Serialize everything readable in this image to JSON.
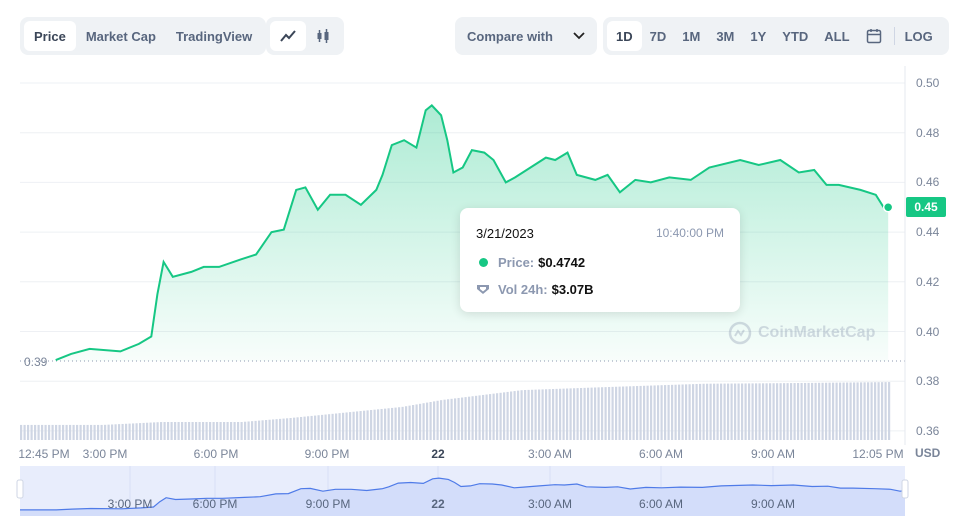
{
  "tabs": {
    "items": [
      "Price",
      "Market Cap",
      "TradingView"
    ],
    "active": "Price"
  },
  "chart_type_toggle": {
    "icons": [
      "line-chart-icon",
      "candlestick-icon"
    ],
    "active": "line-chart-icon"
  },
  "compare": {
    "label": "Compare with"
  },
  "ranges": {
    "items": [
      "1D",
      "7D",
      "1M",
      "3M",
      "1Y",
      "YTD",
      "ALL"
    ],
    "active": "1D",
    "log_label": "LOG"
  },
  "tooltip": {
    "date": "3/21/2023",
    "time": "10:40:00 PM",
    "price_label": "Price:",
    "price_value": "$0.4742",
    "vol_label": "Vol 24h:",
    "vol_value": "$3.07B"
  },
  "watermark": "CoinMarketCap",
  "open_price_label": "0.39",
  "current_price_badge": "0.45",
  "currency": "USD",
  "colors": {
    "line": "#16c784",
    "volume": "#cfd6e4",
    "navigator_line": "#4f7be8",
    "navigator_bg": "#e8edfc"
  },
  "chart_data": {
    "type": "area",
    "y_ticks": [
      "0.50",
      "0.48",
      "0.46",
      "0.44",
      "0.42",
      "0.40",
      "0.38",
      "0.36"
    ],
    "ylim": [
      0.36,
      0.5
    ],
    "x_ticks": [
      "12:45 PM",
      "3:00 PM",
      "6:00 PM",
      "9:00 PM",
      "22",
      "3:00 AM",
      "6:00 AM",
      "9:00 AM",
      "12:05 PM"
    ],
    "navigator_ticks": [
      "3:00 PM",
      "6:00 PM",
      "9:00 PM",
      "22",
      "3:00 AM",
      "6:00 AM",
      "9:00 AM"
    ],
    "price_series": [
      [
        "03-21 13:40",
        0.3885
      ],
      [
        "03-21 14:05",
        0.391
      ],
      [
        "03-21 14:35",
        0.393
      ],
      [
        "03-21 15:25",
        0.392
      ],
      [
        "03-21 15:55",
        0.395
      ],
      [
        "03-21 16:15",
        0.398
      ],
      [
        "03-21 16:25",
        0.415
      ],
      [
        "03-21 16:35",
        0.428
      ],
      [
        "03-21 16:50",
        0.422
      ],
      [
        "03-21 17:20",
        0.424
      ],
      [
        "03-21 17:40",
        0.426
      ],
      [
        "03-21 18:05",
        0.426
      ],
      [
        "03-21 18:40",
        0.429
      ],
      [
        "03-21 19:05",
        0.431
      ],
      [
        "03-21 19:30",
        0.44
      ],
      [
        "03-21 19:50",
        0.441
      ],
      [
        "03-21 20:10",
        0.457
      ],
      [
        "03-21 20:25",
        0.458
      ],
      [
        "03-21 20:45",
        0.449
      ],
      [
        "03-21 21:05",
        0.455
      ],
      [
        "03-21 21:30",
        0.455
      ],
      [
        "03-21 21:55",
        0.451
      ],
      [
        "03-21 22:20",
        0.457
      ],
      [
        "03-21 22:30",
        0.463
      ],
      [
        "03-21 22:45",
        0.475
      ],
      [
        "03-21 23:05",
        0.477
      ],
      [
        "03-21 23:25",
        0.474
      ],
      [
        "03-21 23:40",
        0.489
      ],
      [
        "03-21 23:50",
        0.491
      ],
      [
        "03-22 00:05",
        0.487
      ],
      [
        "03-22 00:15",
        0.477
      ],
      [
        "03-22 00:25",
        0.464
      ],
      [
        "03-22 00:40",
        0.466
      ],
      [
        "03-22 00:55",
        0.473
      ],
      [
        "03-22 01:15",
        0.472
      ],
      [
        "03-22 01:30",
        0.469
      ],
      [
        "03-22 01:50",
        0.46
      ],
      [
        "03-22 02:05",
        0.462
      ],
      [
        "03-22 02:30",
        0.466
      ],
      [
        "03-22 02:55",
        0.47
      ],
      [
        "03-22 03:10",
        0.469
      ],
      [
        "03-22 03:30",
        0.472
      ],
      [
        "03-22 03:45",
        0.463
      ],
      [
        "03-22 04:15",
        0.461
      ],
      [
        "03-22 04:35",
        0.463
      ],
      [
        "03-22 04:55",
        0.456
      ],
      [
        "03-22 05:20",
        0.461
      ],
      [
        "03-22 05:45",
        0.46
      ],
      [
        "03-22 06:15",
        0.462
      ],
      [
        "03-22 06:50",
        0.461
      ],
      [
        "03-22 07:20",
        0.466
      ],
      [
        "03-22 08:10",
        0.469
      ],
      [
        "03-22 08:40",
        0.467
      ],
      [
        "03-22 09:15",
        0.469
      ],
      [
        "03-22 09:45",
        0.464
      ],
      [
        "03-22 10:10",
        0.465
      ],
      [
        "03-22 10:30",
        0.459
      ],
      [
        "03-22 10:50",
        0.459
      ],
      [
        "03-22 11:25",
        0.457
      ],
      [
        "03-22 11:50",
        0.455
      ],
      [
        "03-22 12:05",
        0.449
      ],
      [
        "03-22 12:10",
        0.45
      ]
    ],
    "volume_relative": [
      [
        "03-21 12:45",
        0.26
      ],
      [
        "03-21 14:55",
        0.26
      ],
      [
        "03-21 16:30",
        0.31
      ],
      [
        "03-21 18:40",
        0.31
      ],
      [
        "03-21 20:00",
        0.38
      ],
      [
        "03-21 23:00",
        0.57
      ],
      [
        "03-22 00:05",
        0.69
      ],
      [
        "03-22 02:15",
        0.86
      ],
      [
        "03-22 04:25",
        0.91
      ],
      [
        "03-22 07:10",
        0.97
      ],
      [
        "03-22 09:20",
        0.98
      ],
      [
        "03-22 12:20",
        1.0
      ]
    ]
  }
}
